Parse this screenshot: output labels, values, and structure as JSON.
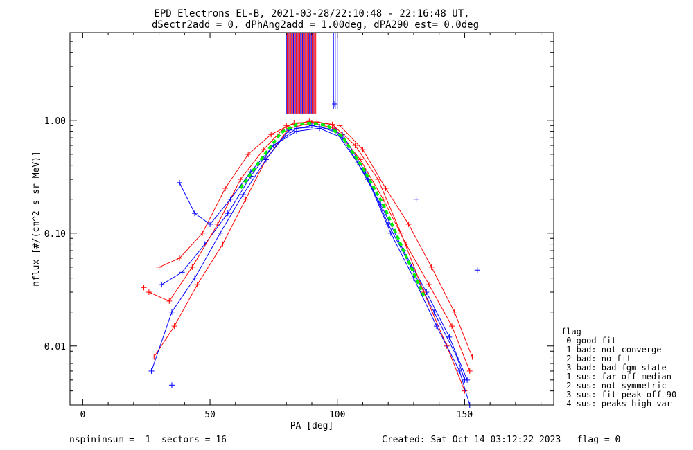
{
  "chart_data": {
    "type": "line",
    "title_line1": "EPD Electrons EL-B, 2021-03-28/22:10:48 - 22:16:48 UT,",
    "title_line2": "dSectr2add = 0, dPhAng2add = 1.00deg, dPA290_est=    0.0deg",
    "xlabel": "PA [deg]",
    "ylabel": "nflux [#/(cm^2 s sr MeV)]",
    "xlim": [
      -5,
      185
    ],
    "ylim": [
      0.003,
      6.0
    ],
    "yscale": "log",
    "xticks": [
      0,
      50,
      100,
      150
    ],
    "xtick_labels": [
      "0",
      "50",
      "100",
      "150"
    ],
    "yticks": [
      0.01,
      0.1,
      1.0
    ],
    "ytick_labels": [
      "0.01",
      "0.10",
      "1.00"
    ],
    "colors": {
      "red": "#ff0000",
      "blue": "#0000ff",
      "green": "#00ee00"
    },
    "series": [
      {
        "color": "red",
        "pa": [
          28,
          36,
          45,
          55,
          64,
          72,
          81,
          90,
          99,
          109,
          118,
          127,
          136,
          145,
          152
        ],
        "flux": [
          0.008,
          0.015,
          0.035,
          0.08,
          0.2,
          0.45,
          0.85,
          0.95,
          0.85,
          0.45,
          0.2,
          0.08,
          0.035,
          0.015,
          0.006
        ]
      },
      {
        "color": "blue",
        "pa": [
          27,
          35,
          44,
          54,
          63,
          72,
          81,
          90,
          99,
          108,
          117,
          126,
          135,
          144,
          151
        ],
        "flux": [
          0.006,
          0.02,
          0.04,
          0.1,
          0.22,
          0.45,
          0.82,
          0.9,
          0.82,
          0.42,
          0.18,
          0.07,
          0.03,
          0.012,
          0.005
        ]
      },
      {
        "color": "red",
        "pa": [
          30,
          38,
          47,
          56,
          65,
          74,
          83,
          92,
          101,
          110,
          119,
          128,
          137,
          146,
          153
        ],
        "flux": [
          0.05,
          0.06,
          0.1,
          0.25,
          0.5,
          0.75,
          0.95,
          0.97,
          0.9,
          0.55,
          0.25,
          0.12,
          0.05,
          0.02,
          0.008
        ]
      },
      {
        "color": "blue",
        "pa": [
          31,
          39,
          48,
          57,
          66,
          75,
          84,
          93,
          102,
          111,
          120,
          129,
          138,
          147,
          150
        ],
        "flux": [
          0.035,
          0.045,
          0.08,
          0.15,
          0.32,
          0.6,
          0.85,
          0.88,
          0.75,
          0.35,
          0.12,
          0.05,
          0.02,
          0.008,
          0.005
        ]
      },
      {
        "color": "red",
        "pa": [
          26,
          34,
          43,
          53,
          62,
          71,
          80,
          89,
          98,
          107,
          116,
          125,
          134,
          143,
          150
        ],
        "flux": [
          0.03,
          0.025,
          0.05,
          0.12,
          0.3,
          0.55,
          0.9,
          0.98,
          0.92,
          0.6,
          0.3,
          0.1,
          0.03,
          0.01,
          0.004
        ]
      },
      {
        "color": "blue",
        "pa": [
          38,
          44,
          50,
          58,
          66,
          75,
          84,
          93,
          102,
          112,
          121,
          130,
          139,
          148,
          152
        ],
        "flux": [
          0.28,
          0.15,
          0.12,
          0.2,
          0.35,
          0.6,
          0.8,
          0.85,
          0.7,
          0.3,
          0.1,
          0.04,
          0.015,
          0.006,
          0.003
        ]
      }
    ],
    "mean_curve": {
      "color": "green",
      "pa": [
        62,
        70,
        78,
        84,
        90,
        96,
        102,
        110,
        118,
        126,
        134
      ],
      "flux": [
        0.25,
        0.45,
        0.78,
        0.92,
        0.95,
        0.9,
        0.72,
        0.38,
        0.18,
        0.07,
        0.028
      ]
    },
    "scatter_points": [
      {
        "pa": 38,
        "flux": 0.28,
        "color": "blue"
      },
      {
        "pa": 155,
        "flux": 0.047,
        "color": "blue"
      },
      {
        "pa": 99,
        "flux": 1.4,
        "color": "blue"
      },
      {
        "pa": 35,
        "flux": 0.0045,
        "color": "blue"
      },
      {
        "pa": 131,
        "flux": 0.2,
        "color": "blue"
      },
      {
        "pa": 24,
        "flux": 0.033,
        "color": "red"
      }
    ],
    "legend": {
      "title": "flag",
      "placement": "right",
      "entries": [
        " 0 good fit",
        " 1 bad: not converge",
        " 2 bad: no fit",
        " 3 bad: bad fgm state",
        "-1 sus: far off median",
        "-2 sus: not symmetric",
        "-3 sus: fit peak off 90",
        "-4 sus: peaks high var"
      ]
    },
    "footer": {
      "left": "nspininsum =  1  sectors = 16",
      "right": "Created: Sat Oct 14 03:12:22 2023   flag = 0"
    }
  }
}
